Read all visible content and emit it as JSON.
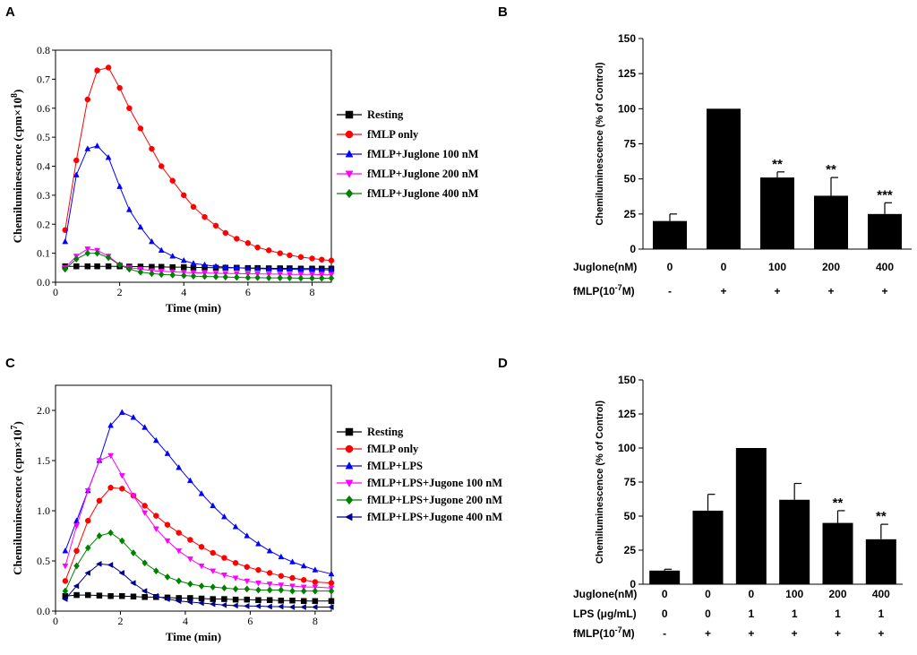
{
  "colors": {
    "resting": "#000000",
    "fmlp_only": "#ff0000",
    "fmlp_lps": "#0000ff",
    "juglone_100": "#0000ff",
    "juglone_200": "#ff00ff",
    "juglone_400": "#008000",
    "lps_jugone_100": "#ff00ff",
    "lps_jugone_200": "#008000",
    "lps_jugone_400": "#00008b",
    "bar": "#000000"
  },
  "chart_data": [
    {
      "panel": "A",
      "type": "line",
      "xlabel": "Time (min)",
      "ylabel_main": "Chemiluminescence (cpm",
      "ylabel_times": "×10",
      "ylabel_exp": "8",
      "ylabel_close": ")",
      "xlim": [
        0,
        8.6
      ],
      "ylim": [
        0,
        0.8
      ],
      "xticks": [
        "0",
        "2",
        "4",
        "6",
        "8"
      ],
      "yticks": [
        "0.0",
        "0.1",
        "0.2",
        "0.3",
        "0.4",
        "0.5",
        "0.6",
        "0.7",
        "0.8"
      ],
      "legend_position": "right",
      "series": [
        {
          "name": "Resting",
          "marker": "square",
          "color": "#000000",
          "x": [
            0.3,
            0.65,
            1.0,
            1.3,
            1.65,
            2.0,
            2.3,
            2.65,
            3.0,
            3.3,
            3.65,
            4.0,
            4.3,
            4.65,
            5.0,
            5.3,
            5.65,
            6.0,
            6.3,
            6.65,
            7.0,
            7.3,
            7.65,
            8.0,
            8.3,
            8.6
          ],
          "y": [
            0.055,
            0.055,
            0.055,
            0.055,
            0.055,
            0.055,
            0.054,
            0.054,
            0.053,
            0.053,
            0.052,
            0.052,
            0.051,
            0.051,
            0.05,
            0.05,
            0.05,
            0.049,
            0.049,
            0.048,
            0.048,
            0.048,
            0.047,
            0.047,
            0.047,
            0.047
          ]
        },
        {
          "name": "fMLP only",
          "marker": "circle",
          "color": "#ff0000",
          "x": [
            0.3,
            0.65,
            1.0,
            1.3,
            1.65,
            2.0,
            2.3,
            2.65,
            3.0,
            3.3,
            3.65,
            4.0,
            4.3,
            4.65,
            5.0,
            5.3,
            5.65,
            6.0,
            6.3,
            6.65,
            7.0,
            7.3,
            7.65,
            8.0,
            8.3,
            8.6
          ],
          "y": [
            0.18,
            0.42,
            0.63,
            0.73,
            0.74,
            0.67,
            0.6,
            0.53,
            0.46,
            0.4,
            0.35,
            0.3,
            0.26,
            0.225,
            0.195,
            0.17,
            0.15,
            0.135,
            0.12,
            0.11,
            0.1,
            0.093,
            0.087,
            0.082,
            0.078,
            0.075
          ]
        },
        {
          "name": "fMLP+Juglone 100 nM",
          "marker": "triangle-up",
          "color": "#0000ff",
          "x": [
            0.3,
            0.65,
            1.0,
            1.3,
            1.65,
            2.0,
            2.3,
            2.65,
            3.0,
            3.3,
            3.65,
            4.0,
            4.3,
            4.65,
            5.0,
            5.3,
            5.65,
            6.0,
            6.3,
            6.65,
            7.0,
            7.3,
            7.65,
            8.0,
            8.3,
            8.6
          ],
          "y": [
            0.14,
            0.37,
            0.46,
            0.47,
            0.43,
            0.33,
            0.25,
            0.19,
            0.14,
            0.11,
            0.09,
            0.075,
            0.065,
            0.06,
            0.055,
            0.052,
            0.05,
            0.048,
            0.047,
            0.046,
            0.045,
            0.045,
            0.044,
            0.044,
            0.043,
            0.043
          ]
        },
        {
          "name": "fMLP+Juglone 200 nM",
          "marker": "triangle-down",
          "color": "#ff00ff",
          "x": [
            0.3,
            0.65,
            1.0,
            1.3,
            1.65,
            2.0,
            2.3,
            2.65,
            3.0,
            3.3,
            3.65,
            4.0,
            4.3,
            4.65,
            5.0,
            5.3,
            5.65,
            6.0,
            6.3,
            6.65,
            7.0,
            7.3,
            7.65,
            8.0,
            8.3,
            8.6
          ],
          "y": [
            0.05,
            0.09,
            0.115,
            0.11,
            0.09,
            0.06,
            0.05,
            0.045,
            0.04,
            0.038,
            0.036,
            0.034,
            0.033,
            0.032,
            0.031,
            0.03,
            0.03,
            0.029,
            0.029,
            0.028,
            0.028,
            0.027,
            0.027,
            0.027,
            0.026,
            0.026
          ]
        },
        {
          "name": "fMLP+Juglone 400 nM",
          "marker": "diamond",
          "color": "#008000",
          "x": [
            0.3,
            0.65,
            1.0,
            1.3,
            1.65,
            2.0,
            2.3,
            2.65,
            3.0,
            3.3,
            3.65,
            4.0,
            4.3,
            4.65,
            5.0,
            5.3,
            5.65,
            6.0,
            6.3,
            6.65,
            7.0,
            7.3,
            7.65,
            8.0,
            8.3,
            8.6
          ],
          "y": [
            0.045,
            0.08,
            0.1,
            0.1,
            0.085,
            0.06,
            0.045,
            0.035,
            0.03,
            0.027,
            0.025,
            0.023,
            0.021,
            0.02,
            0.019,
            0.018,
            0.017,
            0.016,
            0.016,
            0.015,
            0.015,
            0.015,
            0.014,
            0.014,
            0.014,
            0.014
          ]
        }
      ]
    },
    {
      "panel": "B",
      "type": "bar",
      "ylabel": "Chemiluminescence (% of Control)",
      "ylim": [
        0,
        150
      ],
      "yticks": [
        "0",
        "25",
        "50",
        "75",
        "100",
        "125",
        "150"
      ],
      "values": [
        20,
        100,
        51,
        38,
        25
      ],
      "errors": [
        5,
        0,
        4,
        13,
        8
      ],
      "significance": [
        "",
        "",
        "**",
        "**",
        "***"
      ],
      "conditions": [
        {
          "label": "Juglone(nM)",
          "values": [
            "0",
            "0",
            "100",
            "200",
            "400"
          ]
        },
        {
          "label_main": "fMLP(10",
          "label_exp": "-7",
          "label_tail": "M)",
          "values": [
            "-",
            "+",
            "+",
            "+",
            "+"
          ]
        }
      ]
    },
    {
      "panel": "C",
      "type": "line",
      "xlabel": "Time (min)",
      "ylabel_main": "Chemiluminescence (cpm",
      "ylabel_times": "×10",
      "ylabel_exp": "7",
      "ylabel_close": ")",
      "xlim": [
        0,
        8.5
      ],
      "ylim": [
        0,
        2.25
      ],
      "xticks": [
        "0",
        "2",
        "4",
        "6",
        "8"
      ],
      "yticks": [
        "0.0",
        "0.5",
        "1.0",
        "1.5",
        "2.0"
      ],
      "legend_position": "right",
      "series": [
        {
          "name": "Resting",
          "marker": "square",
          "color": "#000000",
          "x": [
            0.3,
            0.65,
            1.0,
            1.35,
            1.7,
            2.05,
            2.4,
            2.75,
            3.1,
            3.45,
            3.8,
            4.15,
            4.5,
            4.85,
            5.2,
            5.55,
            5.9,
            6.25,
            6.6,
            6.95,
            7.3,
            7.65,
            8.0,
            8.5
          ],
          "y": [
            0.15,
            0.16,
            0.16,
            0.155,
            0.15,
            0.15,
            0.145,
            0.14,
            0.14,
            0.135,
            0.13,
            0.13,
            0.125,
            0.12,
            0.12,
            0.115,
            0.115,
            0.11,
            0.11,
            0.105,
            0.105,
            0.1,
            0.1,
            0.1
          ]
        },
        {
          "name": "fMLP only",
          "marker": "circle",
          "color": "#ff0000",
          "x": [
            0.3,
            0.65,
            1.0,
            1.35,
            1.7,
            2.05,
            2.4,
            2.75,
            3.1,
            3.45,
            3.8,
            4.15,
            4.5,
            4.85,
            5.2,
            5.55,
            5.9,
            6.25,
            6.6,
            6.95,
            7.3,
            7.65,
            8.0,
            8.5
          ],
          "y": [
            0.3,
            0.6,
            0.9,
            1.1,
            1.23,
            1.22,
            1.15,
            1.05,
            0.95,
            0.86,
            0.78,
            0.71,
            0.64,
            0.58,
            0.53,
            0.48,
            0.44,
            0.41,
            0.38,
            0.35,
            0.33,
            0.31,
            0.29,
            0.28
          ]
        },
        {
          "name": "fMLP+LPS",
          "marker": "triangle-up",
          "color": "#0000ff",
          "x": [
            0.3,
            0.65,
            1.0,
            1.35,
            1.7,
            2.05,
            2.4,
            2.75,
            3.1,
            3.45,
            3.8,
            4.15,
            4.5,
            4.85,
            5.2,
            5.55,
            5.9,
            6.25,
            6.6,
            6.95,
            7.3,
            7.65,
            8.0,
            8.5
          ],
          "y": [
            0.6,
            0.9,
            1.2,
            1.5,
            1.85,
            1.98,
            1.93,
            1.83,
            1.7,
            1.57,
            1.43,
            1.3,
            1.17,
            1.05,
            0.94,
            0.84,
            0.75,
            0.67,
            0.6,
            0.54,
            0.49,
            0.45,
            0.41,
            0.37
          ]
        },
        {
          "name": "fMLP+LPS+Jugone 100 nM",
          "marker": "triangle-down",
          "color": "#ff00ff",
          "x": [
            0.3,
            0.65,
            1.0,
            1.35,
            1.7,
            2.05,
            2.4,
            2.75,
            3.1,
            3.45,
            3.8,
            4.15,
            4.5,
            4.85,
            5.2,
            5.55,
            5.9,
            6.25,
            6.6,
            6.95,
            7.3,
            7.65,
            8.0,
            8.5
          ],
          "y": [
            0.45,
            0.85,
            1.2,
            1.5,
            1.55,
            1.35,
            1.15,
            0.98,
            0.82,
            0.7,
            0.6,
            0.52,
            0.45,
            0.4,
            0.36,
            0.33,
            0.3,
            0.28,
            0.27,
            0.26,
            0.25,
            0.24,
            0.24,
            0.23
          ]
        },
        {
          "name": "fMLP+LPS+Jugone 200 nM",
          "marker": "diamond",
          "color": "#008000",
          "x": [
            0.3,
            0.65,
            1.0,
            1.35,
            1.7,
            2.05,
            2.4,
            2.75,
            3.1,
            3.45,
            3.8,
            4.15,
            4.5,
            4.85,
            5.2,
            5.55,
            5.9,
            6.25,
            6.6,
            6.95,
            7.3,
            7.65,
            8.0,
            8.5
          ],
          "y": [
            0.2,
            0.45,
            0.63,
            0.75,
            0.78,
            0.7,
            0.58,
            0.48,
            0.4,
            0.34,
            0.3,
            0.27,
            0.25,
            0.24,
            0.23,
            0.22,
            0.22,
            0.21,
            0.21,
            0.21,
            0.2,
            0.2,
            0.2,
            0.2
          ]
        },
        {
          "name": "fMLP+LPS+Jugone 400 nM",
          "marker": "triangle-left",
          "color": "#00008b",
          "x": [
            0.3,
            0.65,
            1.0,
            1.35,
            1.7,
            2.05,
            2.4,
            2.75,
            3.1,
            3.45,
            3.8,
            4.15,
            4.5,
            4.85,
            5.2,
            5.55,
            5.9,
            6.25,
            6.6,
            6.95,
            7.3,
            7.65,
            8.0,
            8.5
          ],
          "y": [
            0.12,
            0.25,
            0.38,
            0.47,
            0.46,
            0.38,
            0.28,
            0.2,
            0.15,
            0.12,
            0.1,
            0.09,
            0.08,
            0.07,
            0.06,
            0.055,
            0.05,
            0.05,
            0.045,
            0.045,
            0.04,
            0.04,
            0.04,
            0.04
          ]
        }
      ]
    },
    {
      "panel": "D",
      "type": "bar",
      "ylabel": "Chemiluminescence (% of Control)",
      "ylim": [
        0,
        150
      ],
      "yticks": [
        "0",
        "25",
        "50",
        "75",
        "100",
        "125",
        "150"
      ],
      "values": [
        10,
        54,
        100,
        62,
        45,
        33
      ],
      "errors": [
        1,
        12,
        0,
        12,
        9,
        11
      ],
      "significance": [
        "",
        "",
        "",
        "",
        "**",
        "**"
      ],
      "conditions": [
        {
          "label": "Juglone(nM)",
          "values": [
            "0",
            "0",
            "0",
            "100",
            "200",
            "400"
          ]
        },
        {
          "label": "LPS (μg/mL)",
          "values": [
            "0",
            "0",
            "1",
            "1",
            "1",
            "1"
          ]
        },
        {
          "label_main": "fMLP(10",
          "label_exp": "-7",
          "label_tail": "M)",
          "values": [
            "-",
            "+",
            "+",
            "+",
            "+",
            "+"
          ]
        }
      ]
    }
  ]
}
